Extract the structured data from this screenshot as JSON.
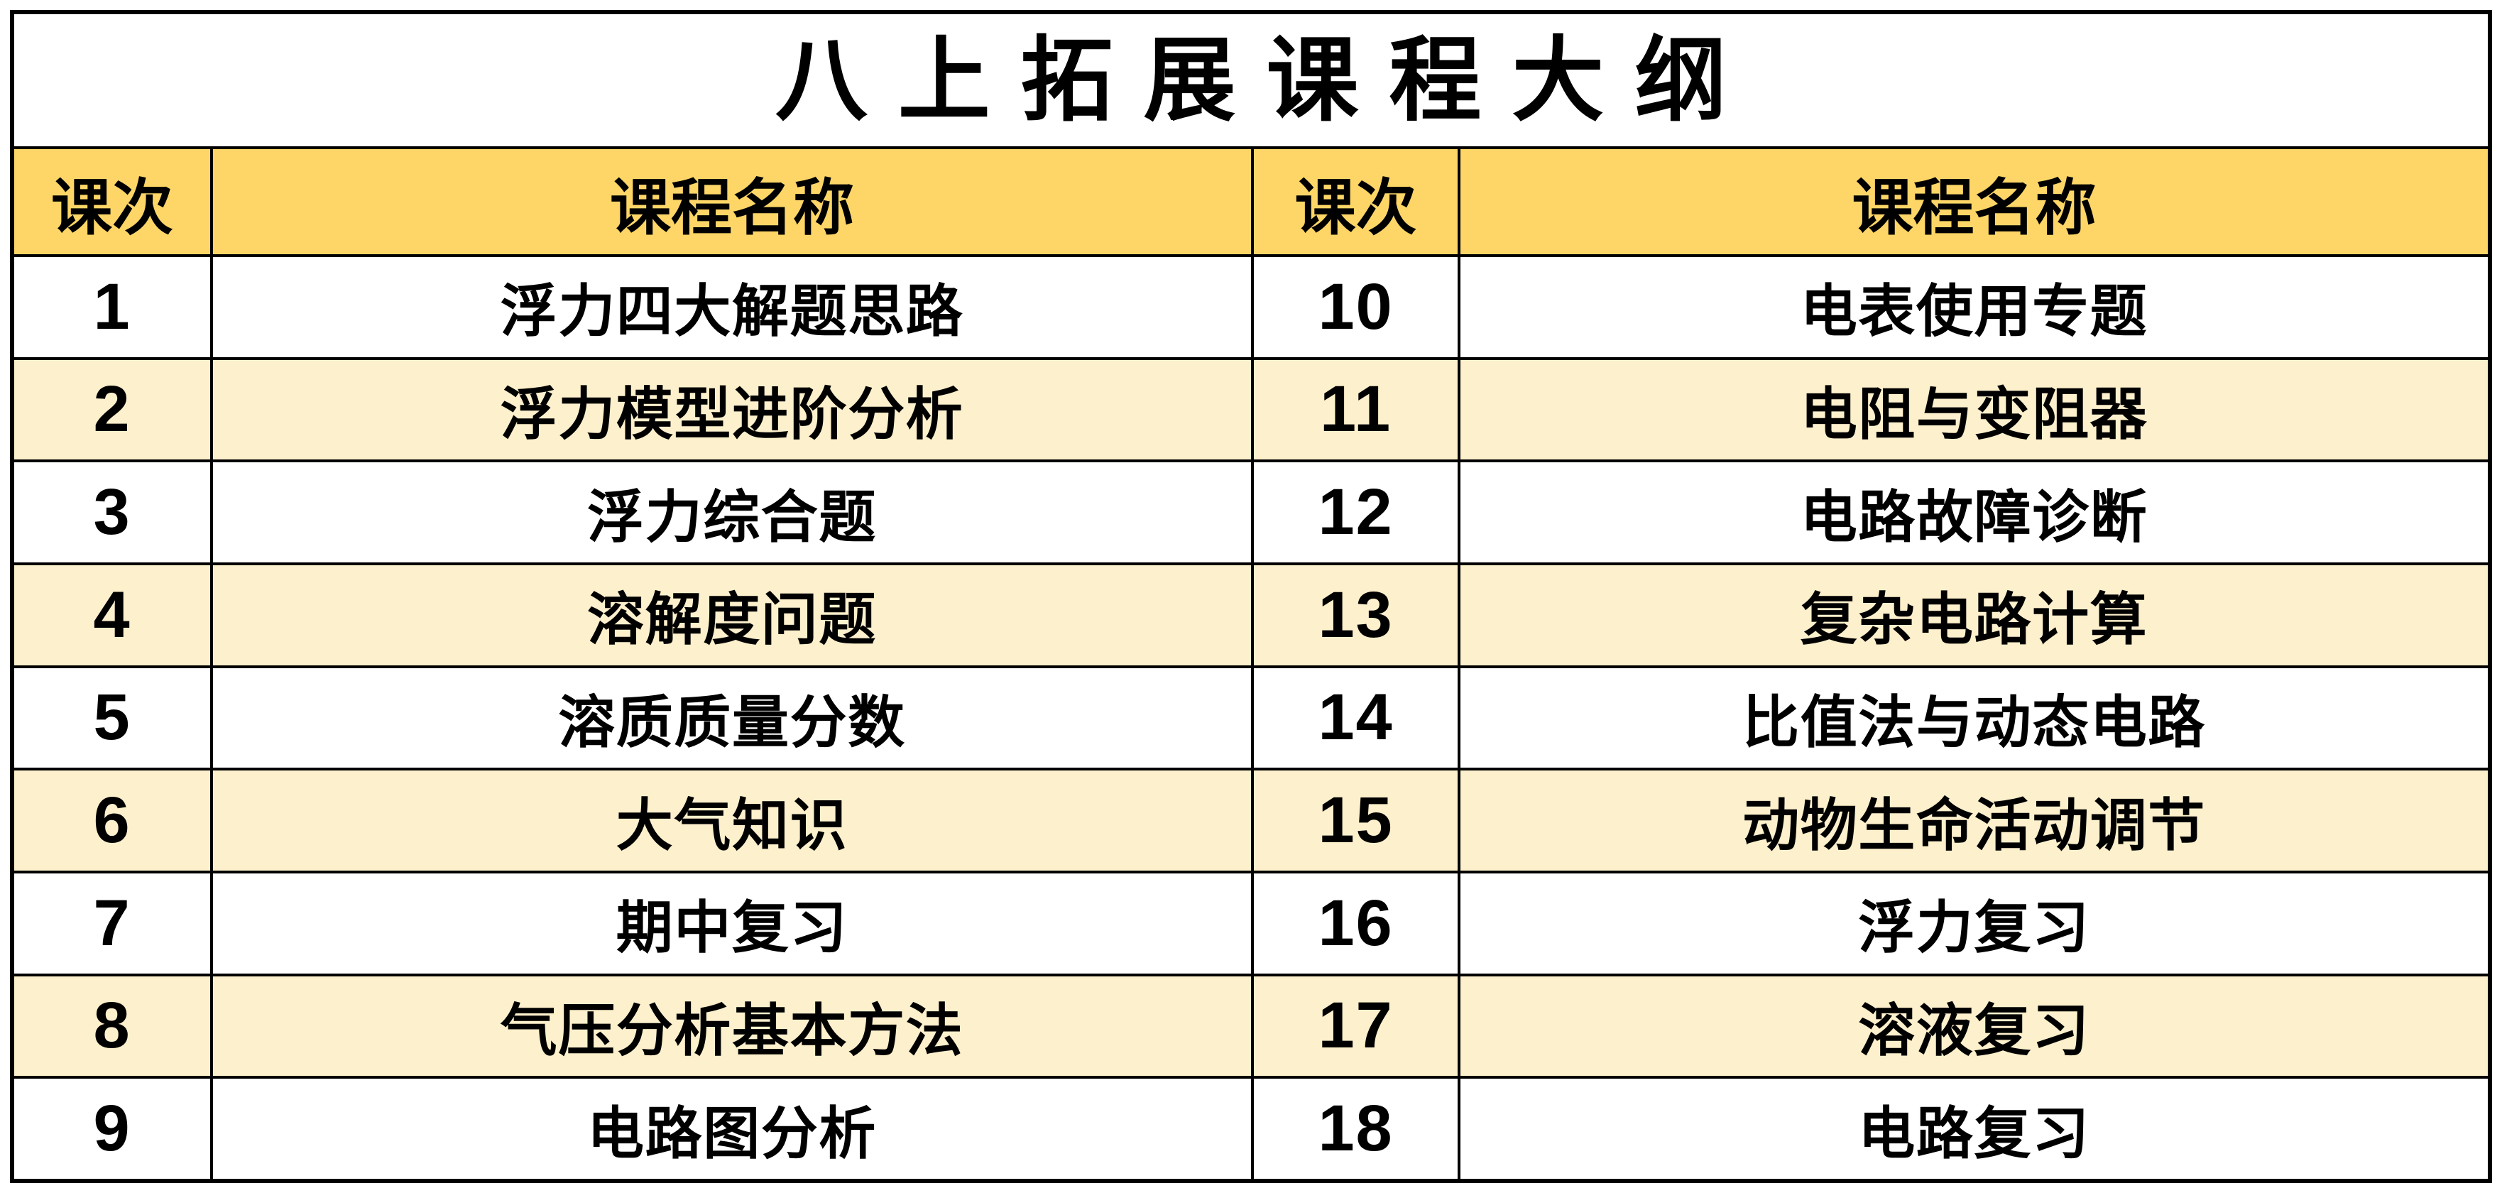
{
  "title": "八上拓展课程大纲",
  "table": {
    "headers": {
      "index_label": "课次",
      "name_label": "课程名称"
    },
    "rows": [
      {
        "left_no": "1",
        "left_name": "浮力四大解题思路",
        "right_no": "10",
        "right_name": "电表使用专题"
      },
      {
        "left_no": "2",
        "left_name": "浮力模型进阶分析",
        "right_no": "11",
        "right_name": "电阻与变阻器"
      },
      {
        "left_no": "3",
        "left_name": "浮力综合题",
        "right_no": "12",
        "right_name": "电路故障诊断"
      },
      {
        "left_no": "4",
        "left_name": "溶解度问题",
        "right_no": "13",
        "right_name": "复杂电路计算"
      },
      {
        "left_no": "5",
        "left_name": "溶质质量分数",
        "right_no": "14",
        "right_name": "比值法与动态电路"
      },
      {
        "left_no": "6",
        "left_name": "大气知识",
        "right_no": "15",
        "right_name": "动物生命活动调节"
      },
      {
        "left_no": "7",
        "left_name": "期中复习",
        "right_no": "16",
        "right_name": "浮力复习"
      },
      {
        "left_no": "8",
        "left_name": "气压分析基本方法",
        "right_no": "17",
        "right_name": "溶液复习"
      },
      {
        "left_no": "9",
        "left_name": "电路图分析",
        "right_no": "18",
        "right_name": "电路复习"
      }
    ]
  },
  "colors": {
    "header_bg": "#FDD667",
    "row_alt_bg": "#FDF0CC",
    "row_bg": "#FFFFFF",
    "grid_line": "#000000",
    "text": "#000000"
  }
}
